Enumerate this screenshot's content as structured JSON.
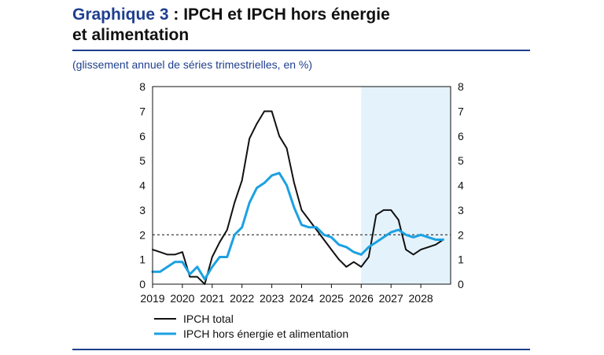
{
  "header": {
    "title_lead": "Graphique 3",
    "title_rest": " : IPCH et IPCH hors énergie",
    "title_line2": "et alimentation",
    "subtitle": "(glissement annuel de séries trimestrielles, en %)"
  },
  "colors": {
    "accent": "#1f3f8f",
    "ipch_total": "#111111",
    "ipch_core": "#1ba1e2",
    "projection_band": "#e4f2fb",
    "reference_line": "#111111"
  },
  "chart_data": {
    "type": "line",
    "x_tick_labels": [
      "2019",
      "2020",
      "2021",
      "2022",
      "2023",
      "2024",
      "2025",
      "2026",
      "2027",
      "2028"
    ],
    "x_start": 2019.0,
    "x_end": 2029.0,
    "ylim": [
      0,
      8
    ],
    "y_ticks": [
      0,
      1,
      2,
      3,
      4,
      5,
      6,
      7,
      8
    ],
    "grid": false,
    "legend_position": "bottom-left",
    "reference_line": {
      "y": 2,
      "style": "dashed"
    },
    "projection_shading": {
      "from": 2026.0,
      "to": 2029.0
    },
    "x": [
      2019.0,
      2019.25,
      2019.5,
      2019.75,
      2020.0,
      2020.25,
      2020.5,
      2020.75,
      2021.0,
      2021.25,
      2021.5,
      2021.75,
      2022.0,
      2022.25,
      2022.5,
      2022.75,
      2023.0,
      2023.25,
      2023.5,
      2023.75,
      2024.0,
      2024.25,
      2024.5,
      2024.75,
      2025.0,
      2025.25,
      2025.5,
      2025.75,
      2026.0,
      2026.25,
      2026.5,
      2026.75,
      2027.0,
      2027.25,
      2027.5,
      2027.75,
      2028.0,
      2028.25,
      2028.5,
      2028.75
    ],
    "series": [
      {
        "name": "IPCH total",
        "color_key": "ipch_total",
        "values": [
          1.4,
          1.3,
          1.2,
          1.2,
          1.3,
          0.3,
          0.3,
          0.0,
          1.1,
          1.7,
          2.2,
          3.3,
          4.2,
          5.9,
          6.5,
          7.0,
          7.0,
          6.0,
          5.5,
          4.1,
          3.0,
          2.6,
          2.2,
          1.8,
          1.4,
          1.0,
          0.7,
          0.9,
          0.7,
          1.1,
          2.8,
          3.0,
          3.0,
          2.6,
          1.4,
          1.2,
          1.4,
          1.5,
          1.6,
          1.8
        ]
      },
      {
        "name": "IPCH hors énergie et alimentation",
        "color_key": "ipch_core",
        "values": [
          0.5,
          0.5,
          0.7,
          0.9,
          0.9,
          0.4,
          0.7,
          0.2,
          0.7,
          1.1,
          1.1,
          2.0,
          2.3,
          3.3,
          3.9,
          4.1,
          4.4,
          4.5,
          4.0,
          3.1,
          2.4,
          2.3,
          2.3,
          2.0,
          1.9,
          1.6,
          1.5,
          1.3,
          1.2,
          1.5,
          1.7,
          1.9,
          2.1,
          2.2,
          2.0,
          1.9,
          2.0,
          1.9,
          1.8,
          1.8
        ]
      }
    ]
  }
}
